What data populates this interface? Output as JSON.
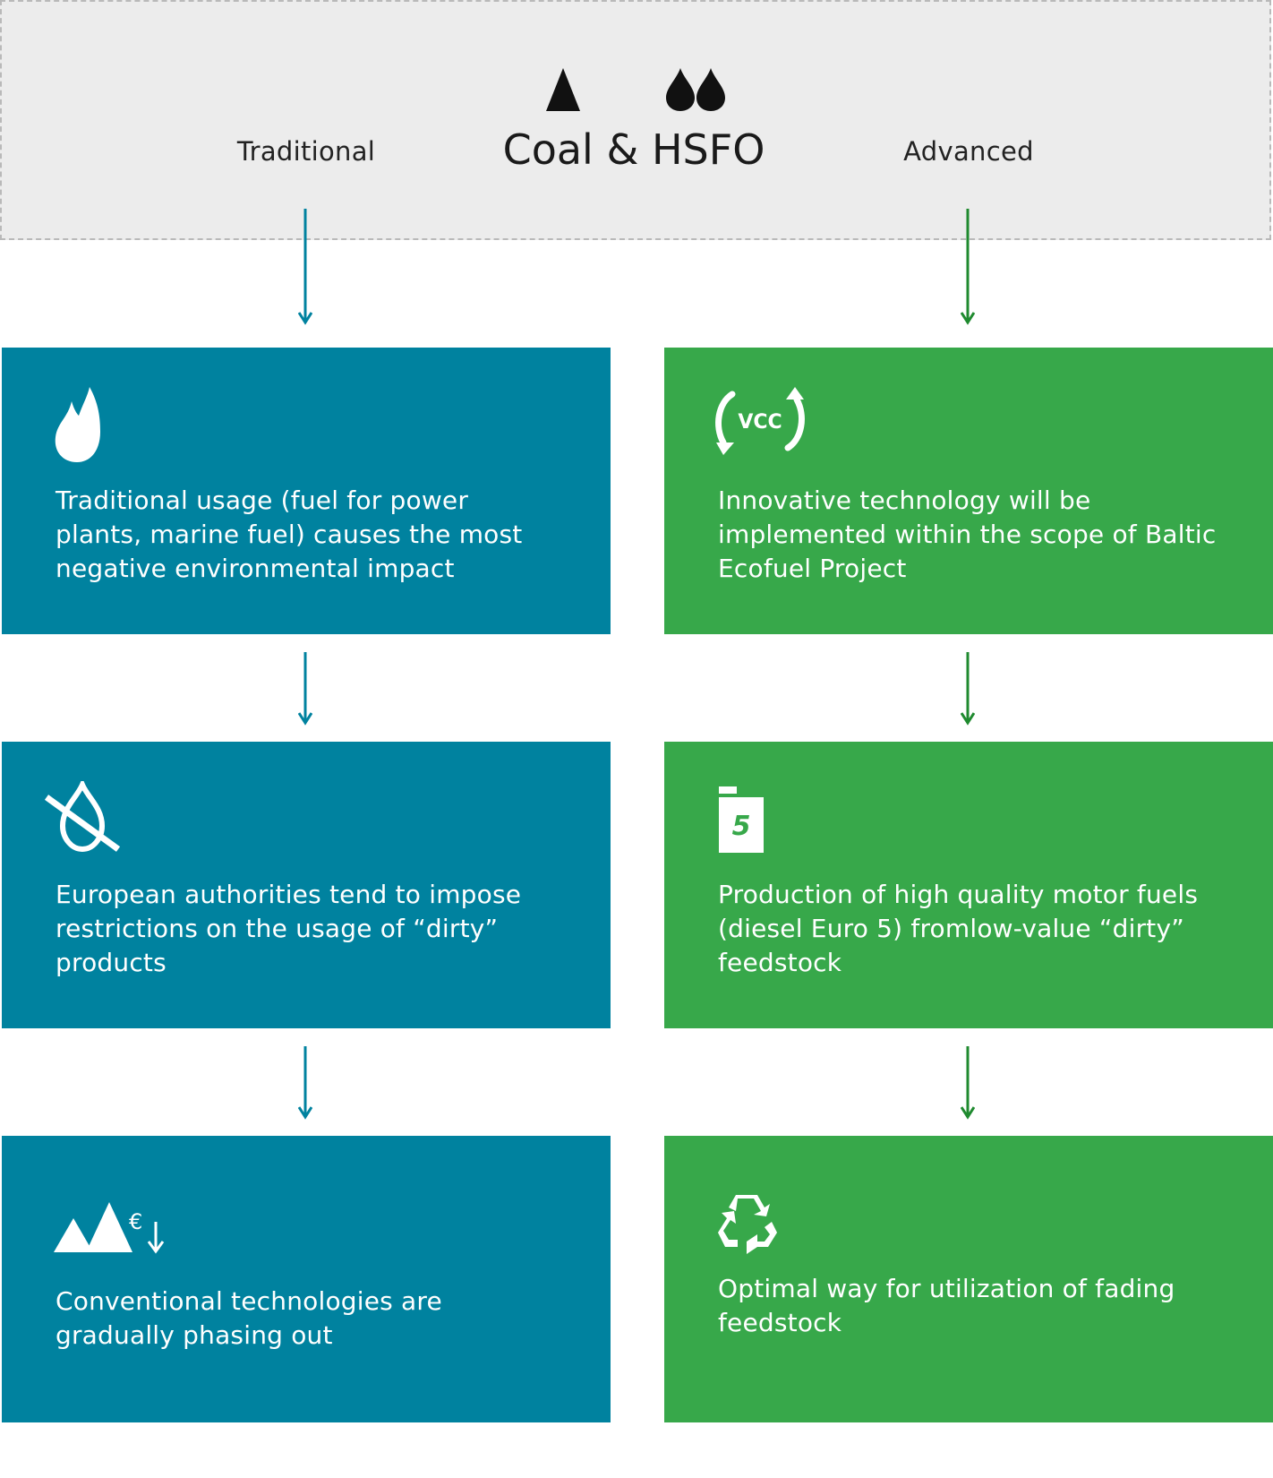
{
  "header": {
    "left_label": "Traditional",
    "title": "Coal & HSFO",
    "right_label": "Advanced",
    "icons": [
      "coal-triangle-icon",
      "oil-drops-icon"
    ]
  },
  "traditional": [
    {
      "icon": "flame-icon",
      "text": "Traditional usage (fuel for power plants, marine fuel) causes the most negative environmental impact"
    },
    {
      "icon": "no-oil-drop-icon",
      "text": "European authorities tend to impose restrictions on the usage of “dirty” products"
    },
    {
      "icon": "declining-price-icon",
      "text": "Conventional technologies are gradually phasing out",
      "icon_text": "€"
    }
  ],
  "advanced": [
    {
      "icon": "vcc-cycle-icon",
      "text": "Innovative technology will be implemented within the scope of Baltic Ecofuel Project",
      "icon_text": "VCC"
    },
    {
      "icon": "euro5-canister-icon",
      "text": "Production of high quality motor fuels (diesel Euro 5) fromlow-value “dirty” feedstock",
      "icon_text": "5"
    },
    {
      "icon": "recycle-icon",
      "text": "Optimal way for utilization of fading feedstock"
    }
  ],
  "colors": {
    "traditional": "#00829f",
    "advanced": "#37a84a",
    "header_bg": "#ececec",
    "arrow_traditional": "#00829f",
    "arrow_advanced": "#1f8a2f"
  }
}
